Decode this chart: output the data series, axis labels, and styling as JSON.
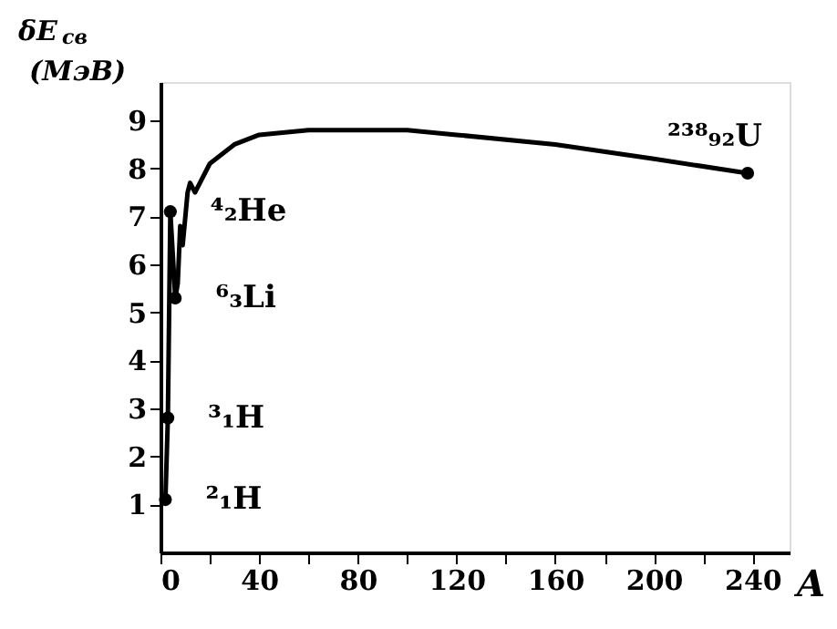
{
  "chart_data": {
    "type": "line",
    "xlabel": "A",
    "ylabel": "δE$_{св}$ (МэВ)",
    "xlim": [
      0,
      255
    ],
    "ylim": [
      0,
      9.8
    ],
    "xticks": [
      0,
      {
        "value": 20,
        "label": null
      },
      40,
      {
        "value": 60,
        "label": null
      },
      80,
      {
        "value": 100,
        "label": null
      },
      120,
      {
        "value": 140,
        "label": null
      },
      160,
      {
        "value": 180,
        "label": null
      },
      200,
      {
        "value": 220,
        "label": null
      },
      240
    ],
    "yticks": [
      1,
      2,
      3,
      4,
      5,
      6,
      7,
      8,
      9
    ],
    "grid": false,
    "series": [
      {
        "color": "#000000",
        "marker": "none",
        "x": [
          2,
          3,
          4,
          6,
          7,
          8,
          9,
          11,
          12,
          14,
          20,
          30,
          40,
          60,
          80,
          100,
          120,
          160,
          200,
          238
        ],
        "values": [
          1.1,
          2.8,
          7.1,
          5.3,
          5.6,
          6.8,
          6.4,
          7.5,
          7.7,
          7.5,
          8.1,
          8.5,
          8.7,
          8.8,
          8.8,
          8.8,
          8.7,
          8.5,
          8.2,
          7.9
        ]
      },
      {
        "type": "scatter",
        "color": "#000000",
        "marker": "circle",
        "x": [
          2,
          3,
          4,
          6,
          238
        ],
        "values": [
          1.1,
          2.8,
          7.1,
          5.3,
          7.9
        ]
      }
    ],
    "annotations": [
      {
        "text": "²₁H",
        "x": 2,
        "y": 1.1
      },
      {
        "text": "³₁H",
        "x": 3,
        "y": 2.8
      },
      {
        "text": "⁴₂He",
        "x": 4,
        "y": 7.1
      },
      {
        "text": "⁶₃Li",
        "x": 6,
        "y": 5.3
      },
      {
        "text": "²³⁸₉₂U",
        "x": 238,
        "y": 7.9
      }
    ]
  }
}
